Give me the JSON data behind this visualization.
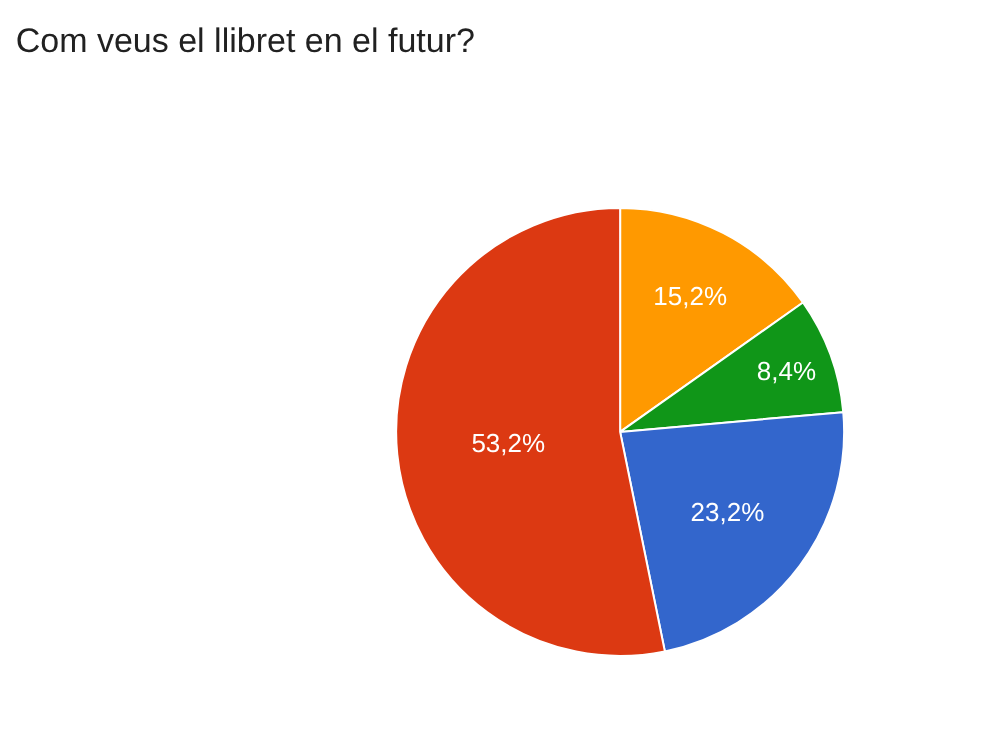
{
  "chart_data": {
    "type": "pie",
    "title": "Com veus el llibret en el futur?",
    "categories": [
      null,
      null,
      null,
      null
    ],
    "values": [
      15.2,
      8.4,
      23.2,
      53.2
    ],
    "value_labels": [
      "15,2%",
      "8,4%",
      "23,2%",
      "53,2%"
    ],
    "colors": [
      "#ff9900",
      "#109618",
      "#3366cc",
      "#dc3912"
    ],
    "legend": false
  }
}
